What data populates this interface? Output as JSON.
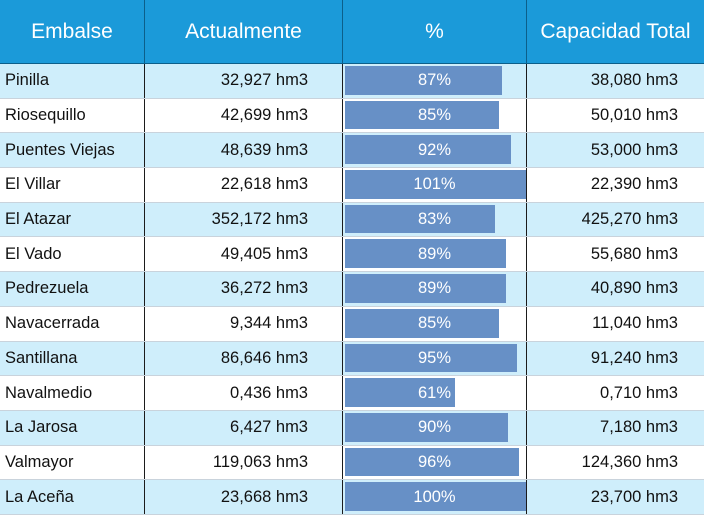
{
  "headers": {
    "embalse": "Embalse",
    "actualmente": "Actualmente",
    "pct": "%",
    "capacidad": "Capacidad Total"
  },
  "rows": [
    {
      "name": "Pinilla",
      "actual": "32,927 hm3",
      "pct": "87%",
      "capacidad": "38,080 hm3",
      "fill": 0.87
    },
    {
      "name": "Riosequillo",
      "actual": "42,699 hm3",
      "pct": "85%",
      "capacidad": "50,010 hm3",
      "fill": 0.85
    },
    {
      "name": "Puentes Viejas",
      "actual": "48,639 hm3",
      "pct": "92%",
      "capacidad": "53,000 hm3",
      "fill": 0.92
    },
    {
      "name": "El Villar",
      "actual": "22,618 hm3",
      "pct": "101%",
      "capacidad": "22,390 hm3",
      "fill": 1.0
    },
    {
      "name": "El Atazar",
      "actual": "352,172 hm3",
      "pct": "83%",
      "capacidad": "425,270 hm3",
      "fill": 0.83
    },
    {
      "name": "El Vado",
      "actual": "49,405 hm3",
      "pct": "89%",
      "capacidad": "55,680 hm3",
      "fill": 0.89
    },
    {
      "name": "Pedrezuela",
      "actual": "36,272 hm3",
      "pct": "89%",
      "capacidad": "40,890 hm3",
      "fill": 0.89
    },
    {
      "name": "Navacerrada",
      "actual": "9,344 hm3",
      "pct": "85%",
      "capacidad": "11,040 hm3",
      "fill": 0.85
    },
    {
      "name": "Santillana",
      "actual": "86,646 hm3",
      "pct": "95%",
      "capacidad": "91,240 hm3",
      "fill": 0.95
    },
    {
      "name": "Navalmedio",
      "actual": "0,436 hm3",
      "pct": "61%",
      "capacidad": "0,710 hm3",
      "fill": 0.61
    },
    {
      "name": "La Jarosa",
      "actual": "6,427 hm3",
      "pct": "90%",
      "capacidad": "7,180 hm3",
      "fill": 0.9
    },
    {
      "name": "Valmayor",
      "actual": "119,063 hm3",
      "pct": "96%",
      "capacidad": "124,360 hm3",
      "fill": 0.96
    },
    {
      "name": "La Aceña",
      "actual": "23,668 hm3",
      "pct": "100%",
      "capacidad": "23,700 hm3",
      "fill": 1.0
    }
  ],
  "colors": {
    "header_bg": "#1b9ad9",
    "row_alt_bg": "#cfeefb",
    "bar": "#6790c6"
  }
}
